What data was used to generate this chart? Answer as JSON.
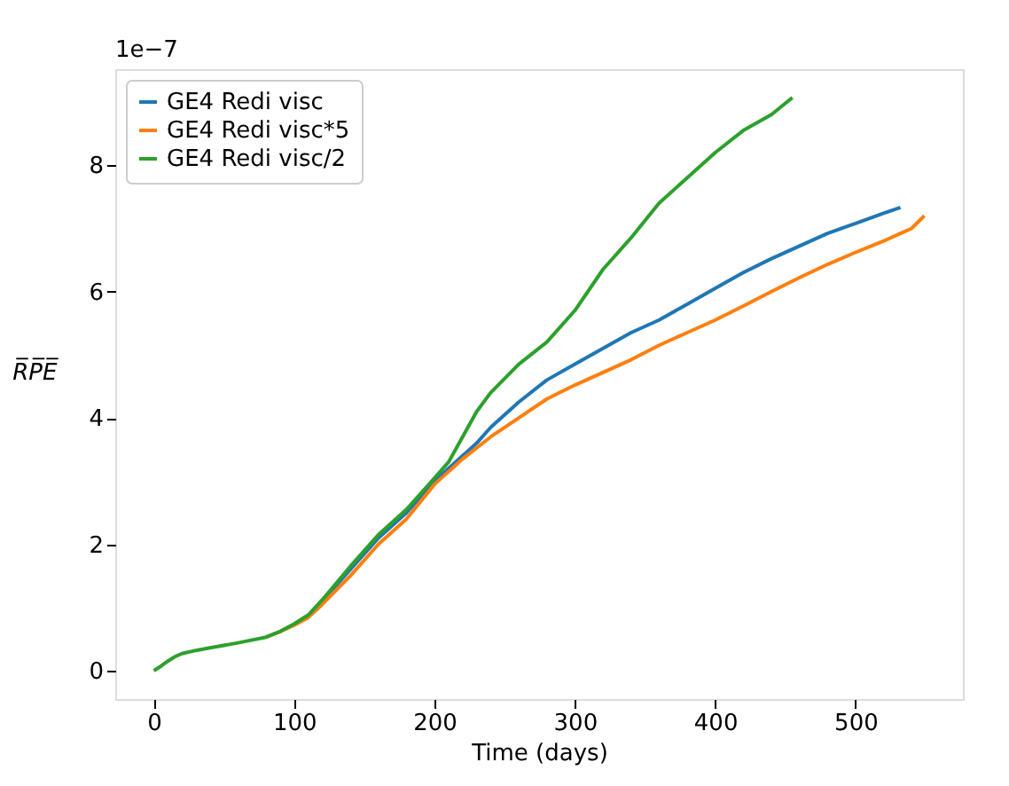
{
  "chart_data": {
    "type": "line",
    "xlabel": "Time (days)",
    "ylabel": "R̅P̅E̅",
    "annotations": [
      "1e−7"
    ],
    "x": [
      0,
      5,
      8,
      10,
      15,
      20,
      30,
      40,
      60,
      80,
      90,
      100,
      110,
      120,
      140,
      160,
      180,
      200,
      210,
      220,
      230,
      240,
      260,
      280,
      300,
      320,
      340,
      360,
      380,
      400,
      420,
      440,
      455
    ],
    "xlim": [
      -27.5,
      576.5
    ],
    "xticks": [
      0,
      100,
      200,
      300,
      400,
      500
    ],
    "ylim": [
      -0.45,
      9.52
    ],
    "yticks": [
      0,
      2,
      4,
      6,
      8
    ],
    "grid": false,
    "legend": "top left",
    "line_style": "solid",
    "marker": "none",
    "series": [
      {
        "name": "GE4 Redi visc",
        "color": "#1f77b4",
        "x": [
          110,
          120,
          140,
          160,
          180,
          200,
          210,
          220,
          230,
          240,
          260,
          280,
          300,
          320,
          340,
          360,
          380,
          400,
          420,
          440,
          460,
          480,
          500,
          520,
          532
        ],
        "values": [
          0.86,
          1.1,
          1.6,
          2.1,
          2.5,
          3.0,
          3.2,
          3.4,
          3.6,
          3.85,
          4.25,
          4.6,
          4.85,
          5.1,
          5.35,
          5.55,
          5.8,
          6.05,
          6.3,
          6.52,
          6.72,
          6.92,
          7.08,
          7.24,
          7.33
        ]
      },
      {
        "name": "GE4 Redi visc*5",
        "color": "#ff7f0e",
        "x": [
          80,
          90,
          100,
          110,
          120,
          140,
          160,
          180,
          200,
          210,
          220,
          240,
          260,
          280,
          300,
          320,
          340,
          360,
          380,
          400,
          420,
          440,
          460,
          480,
          500,
          520,
          540,
          549
        ],
        "values": [
          0.53,
          0.62,
          0.72,
          0.84,
          1.05,
          1.5,
          2.0,
          2.4,
          2.95,
          3.15,
          3.35,
          3.7,
          4.0,
          4.3,
          4.52,
          4.72,
          4.92,
          5.15,
          5.35,
          5.55,
          5.77,
          6.0,
          6.22,
          6.43,
          6.62,
          6.8,
          7.0,
          7.2
        ]
      },
      {
        "name": "GE4 Redi visc/2",
        "color": "#2ca02c",
        "values": [
          0,
          0.07,
          0.12,
          0.15,
          0.22,
          0.27,
          0.32,
          0.36,
          0.44,
          0.53,
          0.62,
          0.74,
          0.88,
          1.12,
          1.65,
          2.15,
          2.55,
          3.05,
          3.3,
          3.7,
          4.1,
          4.4,
          4.85,
          5.2,
          5.7,
          6.35,
          6.85,
          7.4,
          7.8,
          8.2,
          8.55,
          8.8,
          9.07
        ]
      }
    ]
  }
}
